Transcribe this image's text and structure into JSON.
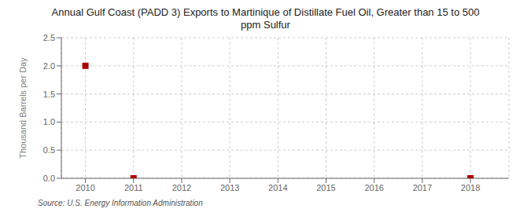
{
  "chart_data": {
    "type": "scatter",
    "title": "Annual Gulf Coast (PADD 3) Exports to Martinique of Distillate Fuel Oil, Greater than 15 to 500\nppm Sulfur",
    "y_label": "Thousand Barrels per Day",
    "annotations": [
      "Source: U.S. Energy Information Administration"
    ],
    "x": [
      2010,
      2011,
      2018
    ],
    "values": [
      2.0,
      0.0,
      0.0
    ],
    "color": "#aa0000",
    "marker": "square",
    "xlim": [
      2009.5,
      2018.8
    ],
    "xticks": [
      2010,
      2011,
      2012,
      2013,
      2014,
      2015,
      2016,
      2017,
      2018
    ],
    "ylim": [
      0.0,
      2.5
    ],
    "yticks": [
      {
        "value": 0.0,
        "label": "0.0"
      },
      {
        "value": 0.5,
        "label": "0.5"
      },
      {
        "value": 1.0,
        "label": "1.0"
      },
      {
        "value": 1.5,
        "label": "1.5"
      },
      {
        "value": 2.0,
        "label": "2.0"
      },
      {
        "value": 2.5,
        "label": "2.5"
      }
    ],
    "grid": true
  }
}
